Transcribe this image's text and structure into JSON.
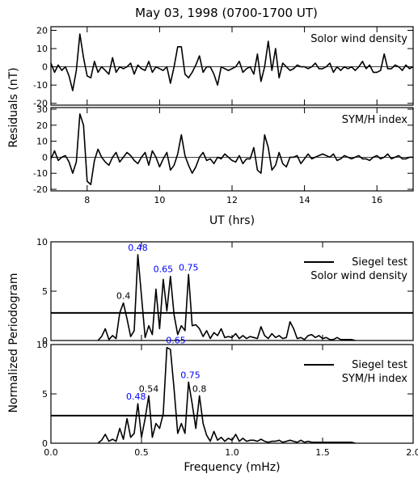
{
  "chart_data": {
    "title": "May 03, 1998 (0700-1700 UT)",
    "top": {
      "ylabel": "Residuals (nT)",
      "xlabel": "UT (hrs)",
      "xlim": [
        7,
        17
      ],
      "xticks": [
        8,
        10,
        12,
        14,
        16
      ],
      "panels": [
        {
          "label": "Solor wind density",
          "ylim": [
            -21,
            22
          ],
          "yticks": [
            -20,
            -10,
            0,
            10,
            20
          ],
          "x": [
            7.0,
            7.1,
            7.2,
            7.3,
            7.4,
            7.5,
            7.6,
            7.7,
            7.8,
            7.9,
            8.0,
            8.1,
            8.2,
            8.3,
            8.4,
            8.5,
            8.6,
            8.7,
            8.8,
            8.9,
            9.0,
            9.1,
            9.2,
            9.3,
            9.4,
            9.5,
            9.6,
            9.7,
            9.8,
            9.9,
            10.0,
            10.1,
            10.2,
            10.3,
            10.4,
            10.5,
            10.6,
            10.7,
            10.8,
            10.9,
            11.0,
            11.1,
            11.2,
            11.3,
            11.4,
            11.5,
            11.6,
            11.7,
            11.8,
            11.9,
            12.0,
            12.1,
            12.2,
            12.3,
            12.4,
            12.5,
            12.6,
            12.7,
            12.8,
            12.9,
            13.0,
            13.1,
            13.2,
            13.3,
            13.4,
            13.5,
            13.6,
            13.7,
            13.8,
            13.9,
            14.0,
            14.1,
            14.2,
            14.3,
            14.4,
            14.5,
            14.6,
            14.7,
            14.8,
            14.9,
            15.0,
            15.1,
            15.2,
            15.3,
            15.4,
            15.5,
            15.6,
            15.7,
            15.8,
            15.9,
            16.0,
            16.1,
            16.2,
            16.3,
            16.4,
            16.5,
            16.6,
            16.7,
            16.8,
            16.9,
            17.0
          ],
          "y": [
            2,
            -3,
            1,
            -2,
            0,
            -5,
            -13,
            -2,
            18,
            5,
            -5,
            -6,
            3,
            -3,
            0,
            -2,
            -4,
            5,
            -3,
            0,
            -1,
            0,
            2,
            -4,
            1,
            -1,
            -2,
            3,
            -3,
            0,
            -1,
            -2,
            0,
            -9,
            0,
            11,
            11,
            -4,
            -6,
            -3,
            1,
            6,
            -3,
            0,
            0,
            -4,
            -10,
            0,
            -1,
            -2,
            -1,
            0,
            3,
            -3,
            -1,
            0,
            -4,
            7,
            -8,
            0,
            14,
            -2,
            10,
            -6,
            2,
            0,
            -2,
            -1,
            1,
            0,
            0,
            -1,
            0,
            2,
            -1,
            -1,
            0,
            2,
            -3,
            0,
            -2,
            0,
            -1,
            0,
            -2,
            0,
            3,
            -1,
            1,
            -3,
            -3,
            -2,
            7,
            -1,
            -1,
            1,
            0,
            -2,
            1,
            -1,
            0
          ]
        },
        {
          "label": "SYM/H index",
          "ylim": [
            -21,
            31
          ],
          "yticks": [
            -20,
            -10,
            0,
            10,
            20,
            30
          ],
          "x": [
            7.0,
            7.1,
            7.2,
            7.3,
            7.4,
            7.5,
            7.6,
            7.7,
            7.8,
            7.9,
            8.0,
            8.1,
            8.2,
            8.3,
            8.4,
            8.5,
            8.6,
            8.7,
            8.8,
            8.9,
            9.0,
            9.1,
            9.2,
            9.3,
            9.4,
            9.5,
            9.6,
            9.7,
            9.8,
            9.9,
            10.0,
            10.1,
            10.2,
            10.3,
            10.4,
            10.5,
            10.6,
            10.7,
            10.8,
            10.9,
            11.0,
            11.1,
            11.2,
            11.3,
            11.4,
            11.5,
            11.6,
            11.7,
            11.8,
            11.9,
            12.0,
            12.1,
            12.2,
            12.3,
            12.4,
            12.5,
            12.6,
            12.7,
            12.8,
            12.9,
            13.0,
            13.1,
            13.2,
            13.3,
            13.4,
            13.5,
            13.6,
            13.7,
            13.8,
            13.9,
            14.0,
            14.1,
            14.2,
            14.3,
            14.4,
            14.5,
            14.6,
            14.7,
            14.8,
            14.9,
            15.0,
            15.1,
            15.2,
            15.3,
            15.4,
            15.5,
            15.6,
            15.7,
            15.8,
            15.9,
            16.0,
            16.1,
            16.2,
            16.3,
            16.4,
            16.5,
            16.6,
            16.7,
            16.8,
            16.9,
            17.0
          ],
          "y": [
            -1,
            4,
            -2,
            0,
            1,
            -3,
            -10,
            -3,
            27,
            20,
            -15,
            -17,
            -2,
            5,
            0,
            -3,
            -5,
            0,
            3,
            -3,
            0,
            3,
            1,
            -2,
            -4,
            0,
            3,
            -5,
            4,
            0,
            -6,
            -1,
            3,
            -8,
            -5,
            2,
            14,
            1,
            -5,
            -10,
            -6,
            0,
            3,
            -2,
            -1,
            -4,
            0,
            -1,
            2,
            0,
            -2,
            -3,
            1,
            -4,
            -1,
            -1,
            6,
            -8,
            -10,
            14,
            6,
            -8,
            -5,
            3,
            -4,
            -6,
            0,
            0,
            1,
            -4,
            -1,
            2,
            -1,
            0,
            1,
            2,
            1,
            0,
            2,
            -2,
            -1,
            1,
            0,
            -1,
            0,
            1,
            -1,
            -1,
            -2,
            0,
            1,
            -1,
            0,
            2,
            -1,
            0,
            1,
            -1,
            -1,
            0,
            0
          ]
        }
      ]
    },
    "bottom": {
      "ylabel": "Normalized Periodogram",
      "xlabel": "Frequency (mHz)",
      "xlim": [
        0,
        2
      ],
      "xticks": [
        0.0,
        0.5,
        1.0,
        1.5,
        2.0
      ],
      "xtick_labels": [
        "0.0",
        "0.5",
        "1.0",
        "1.5",
        "2.0"
      ],
      "legend": "Siegel test",
      "panels": [
        {
          "label": "Solor wind density",
          "ylim": [
            0,
            10
          ],
          "yticks": [
            0,
            5,
            10
          ],
          "siegel_threshold": 2.8,
          "x": [
            0.26,
            0.28,
            0.3,
            0.32,
            0.34,
            0.36,
            0.38,
            0.4,
            0.42,
            0.44,
            0.46,
            0.48,
            0.5,
            0.52,
            0.54,
            0.56,
            0.58,
            0.6,
            0.62,
            0.64,
            0.66,
            0.68,
            0.7,
            0.72,
            0.74,
            0.76,
            0.78,
            0.8,
            0.82,
            0.84,
            0.86,
            0.88,
            0.9,
            0.92,
            0.94,
            0.96,
            0.98,
            1.0,
            1.02,
            1.04,
            1.06,
            1.08,
            1.1,
            1.12,
            1.14,
            1.16,
            1.18,
            1.2,
            1.22,
            1.24,
            1.26,
            1.28,
            1.3,
            1.32,
            1.34,
            1.36,
            1.38,
            1.4,
            1.42,
            1.44,
            1.46,
            1.48,
            1.5,
            1.52,
            1.54,
            1.56,
            1.58,
            1.6,
            1.62,
            1.64,
            1.66,
            1.68
          ],
          "y": [
            0,
            0.4,
            1.2,
            0.1,
            0.5,
            0.2,
            2.8,
            3.8,
            2.2,
            0.4,
            1.0,
            8.7,
            4.5,
            0.3,
            1.5,
            0.6,
            5.2,
            1.2,
            6.2,
            3.0,
            6.5,
            2.6,
            0.6,
            1.5,
            1.0,
            6.7,
            1.5,
            1.6,
            1.2,
            0.4,
            1.0,
            0.2,
            0.8,
            0.5,
            1.2,
            0.3,
            0.4,
            0.3,
            0.7,
            0.2,
            0.5,
            0.2,
            0.4,
            0.3,
            0.2,
            1.4,
            0.5,
            0.2,
            0.7,
            0.3,
            0.5,
            0.2,
            0.3,
            1.9,
            1.2,
            0.2,
            0.3,
            0.1,
            0.5,
            0.6,
            0.3,
            0.5,
            0.2,
            0.3,
            0.1,
            0.1,
            0.3,
            0.1,
            0.1,
            0.1,
            0.1,
            0
          ],
          "annotations": [
            {
              "text": "0.4",
              "x": 0.4,
              "y": 3.8,
              "color": "#000000"
            },
            {
              "text": "0.48",
              "x": 0.48,
              "y": 8.7,
              "color": "#0000ff"
            },
            {
              "text": "0.65",
              "x": 0.62,
              "y": 6.5,
              "color": "#0000ff"
            },
            {
              "text": "0.75",
              "x": 0.76,
              "y": 6.7,
              "color": "#0000ff"
            }
          ]
        },
        {
          "label": "SYM/H index",
          "ylim": [
            0,
            10
          ],
          "yticks": [
            0,
            5,
            10
          ],
          "siegel_threshold": 2.8,
          "x": [
            0.26,
            0.28,
            0.3,
            0.32,
            0.34,
            0.36,
            0.38,
            0.4,
            0.42,
            0.44,
            0.46,
            0.48,
            0.5,
            0.52,
            0.54,
            0.56,
            0.58,
            0.6,
            0.62,
            0.64,
            0.66,
            0.68,
            0.7,
            0.72,
            0.74,
            0.76,
            0.78,
            0.8,
            0.82,
            0.84,
            0.86,
            0.88,
            0.9,
            0.92,
            0.94,
            0.96,
            0.98,
            1.0,
            1.02,
            1.04,
            1.06,
            1.08,
            1.1,
            1.12,
            1.14,
            1.16,
            1.18,
            1.2,
            1.22,
            1.24,
            1.26,
            1.28,
            1.3,
            1.32,
            1.34,
            1.36,
            1.38,
            1.4,
            1.42,
            1.44,
            1.46,
            1.48,
            1.5,
            1.52,
            1.54,
            1.56,
            1.58,
            1.6,
            1.62,
            1.64,
            1.66,
            1.68
          ],
          "y": [
            0,
            0.3,
            0.9,
            0.2,
            0.4,
            0.2,
            1.5,
            0.4,
            2.5,
            0.6,
            1.0,
            4.0,
            0.6,
            2.5,
            4.8,
            0.6,
            2.0,
            1.5,
            3.0,
            9.7,
            9.5,
            5.5,
            1.0,
            2.0,
            1.0,
            6.2,
            4.0,
            1.5,
            4.8,
            2.0,
            0.8,
            0.2,
            1.2,
            0.3,
            0.6,
            0.2,
            0.5,
            0.3,
            0.9,
            0.2,
            0.5,
            0.2,
            0.3,
            0.3,
            0.2,
            0.4,
            0.2,
            0.1,
            0.2,
            0.2,
            0.3,
            0.1,
            0.2,
            0.3,
            0.2,
            0.1,
            0.3,
            0.1,
            0.2,
            0.1,
            0.1,
            0.1,
            0.1,
            0.1,
            0.1,
            0.1,
            0.1,
            0.1,
            0.1,
            0.1,
            0.1,
            0
          ],
          "annotations": [
            {
              "text": "0.48",
              "x": 0.47,
              "y": 4.0,
              "color": "#0000ff"
            },
            {
              "text": "0.54",
              "x": 0.54,
              "y": 4.8,
              "color": "#000000"
            },
            {
              "text": "0.65",
              "x": 0.69,
              "y": 9.7,
              "color": "#0000ff"
            },
            {
              "text": "0.75",
              "x": 0.77,
              "y": 6.2,
              "color": "#0000ff"
            },
            {
              "text": "0.8",
              "x": 0.82,
              "y": 4.8,
              "color": "#000000"
            }
          ]
        }
      ]
    }
  }
}
